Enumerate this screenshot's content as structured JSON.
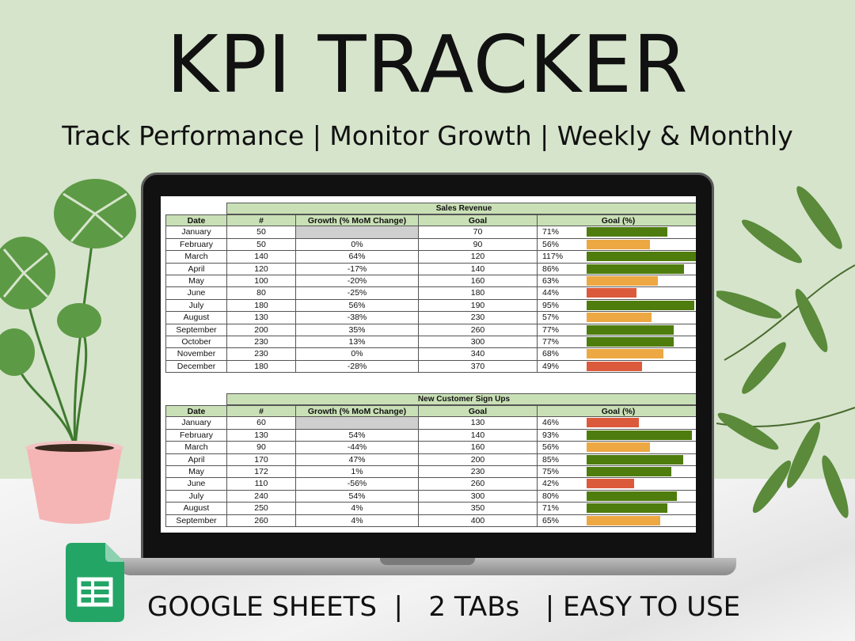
{
  "header": {
    "title": "KPI TRACKER",
    "subtitle": "Track Performance | Monitor Growth | Weekly & Monthly"
  },
  "footer": {
    "text": "GOOGLE SHEETS  |   2 TABs   | EASY TO USE"
  },
  "colors": {
    "background_green": "#d6e4cc",
    "header_green": "#c9e0b6",
    "bar_green": "#4e7d0e",
    "bar_orange": "#eda843",
    "bar_red": "#dc5a3c"
  },
  "columns": [
    "Date",
    "#",
    "Growth (% MoM Change)",
    "Goal",
    "Goal (%)"
  ],
  "tables": [
    {
      "title": "Sales Revenue",
      "rows": [
        {
          "date": "January",
          "num": "50",
          "growth": "",
          "goal": "70",
          "pct": "71%",
          "pct_value": 71,
          "status": "green"
        },
        {
          "date": "February",
          "num": "50",
          "growth": "0%",
          "goal": "90",
          "pct": "56%",
          "pct_value": 56,
          "status": "orange"
        },
        {
          "date": "March",
          "num": "140",
          "growth": "64%",
          "goal": "120",
          "pct": "117%",
          "pct_value": 117,
          "status": "green"
        },
        {
          "date": "April",
          "num": "120",
          "growth": "-17%",
          "goal": "140",
          "pct": "86%",
          "pct_value": 86,
          "status": "green"
        },
        {
          "date": "May",
          "num": "100",
          "growth": "-20%",
          "goal": "160",
          "pct": "63%",
          "pct_value": 63,
          "status": "orange"
        },
        {
          "date": "June",
          "num": "80",
          "growth": "-25%",
          "goal": "180",
          "pct": "44%",
          "pct_value": 44,
          "status": "red"
        },
        {
          "date": "July",
          "num": "180",
          "growth": "56%",
          "goal": "190",
          "pct": "95%",
          "pct_value": 95,
          "status": "green"
        },
        {
          "date": "August",
          "num": "130",
          "growth": "-38%",
          "goal": "230",
          "pct": "57%",
          "pct_value": 57,
          "status": "orange"
        },
        {
          "date": "September",
          "num": "200",
          "growth": "35%",
          "goal": "260",
          "pct": "77%",
          "pct_value": 77,
          "status": "green"
        },
        {
          "date": "October",
          "num": "230",
          "growth": "13%",
          "goal": "300",
          "pct": "77%",
          "pct_value": 77,
          "status": "green"
        },
        {
          "date": "November",
          "num": "230",
          "growth": "0%",
          "goal": "340",
          "pct": "68%",
          "pct_value": 68,
          "status": "orange"
        },
        {
          "date": "December",
          "num": "180",
          "growth": "-28%",
          "goal": "370",
          "pct": "49%",
          "pct_value": 49,
          "status": "red"
        }
      ]
    },
    {
      "title": "New Customer Sign Ups",
      "rows": [
        {
          "date": "January",
          "num": "60",
          "growth": "",
          "goal": "130",
          "pct": "46%",
          "pct_value": 46,
          "status": "red"
        },
        {
          "date": "February",
          "num": "130",
          "growth": "54%",
          "goal": "140",
          "pct": "93%",
          "pct_value": 93,
          "status": "green"
        },
        {
          "date": "March",
          "num": "90",
          "growth": "-44%",
          "goal": "160",
          "pct": "56%",
          "pct_value": 56,
          "status": "orange"
        },
        {
          "date": "April",
          "num": "170",
          "growth": "47%",
          "goal": "200",
          "pct": "85%",
          "pct_value": 85,
          "status": "green"
        },
        {
          "date": "May",
          "num": "172",
          "growth": "1%",
          "goal": "230",
          "pct": "75%",
          "pct_value": 75,
          "status": "green"
        },
        {
          "date": "June",
          "num": "110",
          "growth": "-56%",
          "goal": "260",
          "pct": "42%",
          "pct_value": 42,
          "status": "red"
        },
        {
          "date": "July",
          "num": "240",
          "growth": "54%",
          "goal": "300",
          "pct": "80%",
          "pct_value": 80,
          "status": "green"
        },
        {
          "date": "August",
          "num": "250",
          "growth": "4%",
          "goal": "350",
          "pct": "71%",
          "pct_value": 71,
          "status": "green"
        },
        {
          "date": "September",
          "num": "260",
          "growth": "4%",
          "goal": "400",
          "pct": "65%",
          "pct_value": 65,
          "status": "orange"
        }
      ]
    }
  ],
  "icons": {
    "brand": "google-sheets-icon",
    "decor_left": "monstera-plant-icon",
    "decor_right": "olive-branch-icon"
  }
}
